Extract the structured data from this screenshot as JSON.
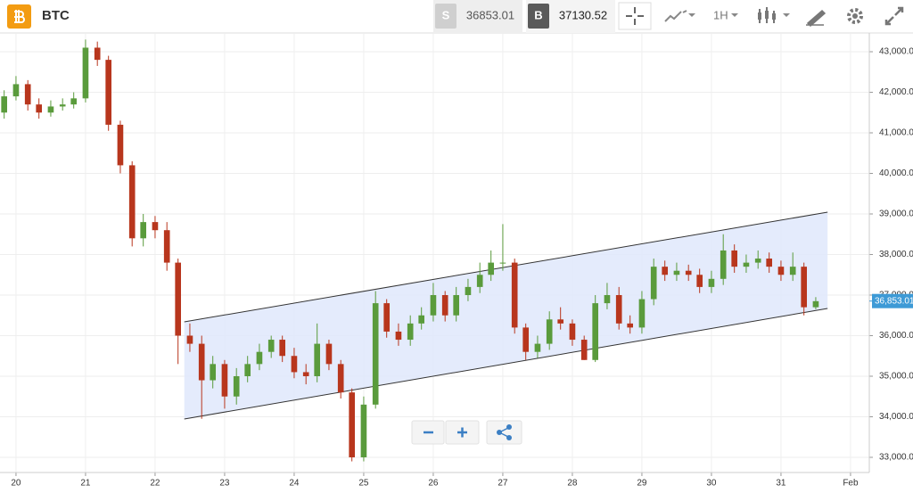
{
  "toolbar": {
    "symbol": "BTC",
    "sell_label": "S",
    "sell_price": "36853.01",
    "buy_label": "B",
    "buy_price": "37130.52",
    "interval": "1H"
  },
  "chart_data": {
    "type": "candlestick",
    "x": [
      19.83,
      20,
      20.17,
      20.33,
      20.5,
      20.67,
      20.83,
      21,
      21.17,
      21.33,
      21.5,
      21.67,
      21.83,
      22,
      22.17,
      22.33,
      22.5,
      22.67,
      22.83,
      23,
      23.17,
      23.33,
      23.5,
      23.67,
      23.83,
      24,
      24.17,
      24.33,
      24.5,
      24.67,
      24.83,
      25,
      25.17,
      25.33,
      25.5,
      25.67,
      25.83,
      26,
      26.17,
      26.33,
      26.5,
      26.67,
      26.83,
      27,
      27.17,
      27.33,
      27.5,
      27.67,
      27.83,
      28,
      28.17,
      28.33,
      28.5,
      28.67,
      28.83,
      29,
      29.17,
      29.33,
      29.5,
      29.67,
      29.83,
      30,
      30.17,
      30.33,
      30.5,
      30.67,
      30.83,
      31,
      31.17,
      31.33,
      31.5
    ],
    "open": [
      41500,
      41900,
      42200,
      41700,
      41500,
      41650,
      41700,
      41850,
      43100,
      42800,
      41200,
      40200,
      38400,
      38800,
      38600,
      37800,
      36000,
      35800,
      34900,
      35300,
      34500,
      35000,
      35300,
      35600,
      35900,
      35500,
      35100,
      35000,
      35800,
      35300,
      34600,
      33000,
      34300,
      36800,
      36100,
      35900,
      36300,
      36500,
      37000,
      36500,
      37000,
      37200,
      37500,
      37800,
      37800,
      36200,
      35600,
      35800,
      36400,
      36300,
      35900,
      35400,
      36800,
      37000,
      36300,
      36200,
      36900,
      37700,
      37500,
      37600,
      37500,
      37200,
      37400,
      38100,
      37700,
      37800,
      37900,
      37700,
      37500,
      37700,
      36700
    ],
    "high": [
      42050,
      42400,
      42300,
      41850,
      41800,
      41850,
      42000,
      43300,
      43250,
      42900,
      41300,
      40300,
      39000,
      38950,
      38800,
      37900,
      36300,
      36000,
      35500,
      35400,
      35200,
      35500,
      35800,
      36000,
      36000,
      35700,
      35300,
      36300,
      35900,
      35400,
      34700,
      34500,
      37100,
      36900,
      36300,
      36500,
      36700,
      37300,
      37100,
      37200,
      37400,
      37800,
      38100,
      38750,
      37900,
      36300,
      36000,
      36600,
      36700,
      36400,
      36000,
      37000,
      37300,
      37200,
      36500,
      37100,
      37900,
      37850,
      37800,
      37750,
      37650,
      37600,
      38500,
      38250,
      38000,
      38100,
      38050,
      37850,
      38050,
      37800,
      36950
    ],
    "low": [
      41350,
      41800,
      41550,
      41350,
      41400,
      41550,
      41600,
      41750,
      42650,
      41050,
      40000,
      38200,
      38200,
      38400,
      37600,
      35300,
      35600,
      33950,
      34700,
      34200,
      34300,
      34850,
      35150,
      35450,
      35350,
      34950,
      34800,
      34850,
      35150,
      34450,
      32900,
      32900,
      34200,
      35950,
      35750,
      35750,
      36150,
      36350,
      36350,
      36350,
      36850,
      37050,
      37350,
      37600,
      36050,
      35400,
      35450,
      35650,
      36150,
      35750,
      35400,
      35350,
      36650,
      36150,
      36050,
      36050,
      36750,
      37350,
      37350,
      37350,
      37050,
      37050,
      37250,
      37550,
      37550,
      37650,
      37550,
      37350,
      37350,
      36500,
      36650
    ],
    "close": [
      41900,
      42200,
      41700,
      41500,
      41650,
      41700,
      41850,
      43100,
      42800,
      41200,
      40200,
      38400,
      38800,
      38600,
      37800,
      36000,
      35800,
      34900,
      35300,
      34500,
      35000,
      35300,
      35600,
      35900,
      35500,
      35100,
      35000,
      35800,
      35300,
      34600,
      33000,
      34300,
      36800,
      36100,
      35900,
      36300,
      36500,
      37000,
      36500,
      37000,
      37200,
      37500,
      37800,
      37800,
      36200,
      35600,
      35800,
      36400,
      36300,
      35900,
      35400,
      36800,
      37000,
      36300,
      36200,
      36900,
      37700,
      37500,
      37600,
      37500,
      37200,
      37400,
      38100,
      37700,
      37800,
      37900,
      37700,
      37500,
      37700,
      36700,
      36850
    ],
    "up_color": "#5a9b3c",
    "down_color": "#b8361d",
    "xlim": [
      19.77,
      32.27
    ],
    "ylim": [
      32626,
      43462
    ],
    "xticks": [
      20,
      21,
      22,
      23,
      24,
      25,
      26,
      27,
      28,
      29,
      30,
      31,
      {
        "value": 32,
        "label": "Feb"
      }
    ],
    "yticks": [
      {
        "value": 33000,
        "label": "33,000.00"
      },
      {
        "value": 34000,
        "label": "34,000.00"
      },
      {
        "value": 35000,
        "label": "35,000.00"
      },
      {
        "value": 36000,
        "label": "36,000.00"
      },
      {
        "value": 37000,
        "label": "37,000.00"
      },
      {
        "value": 38000,
        "label": "38,000.00"
      },
      {
        "value": 39000,
        "label": "39,000.00"
      },
      {
        "value": 40000,
        "label": "40,000.00"
      },
      {
        "value": 41000,
        "label": "41,000.00"
      },
      {
        "value": 42000,
        "label": "42,000.00"
      },
      {
        "value": 43000,
        "label": "43,000.00"
      }
    ],
    "grid": true,
    "channel": {
      "x": [
        22.42,
        31.67
      ],
      "upper": [
        36340,
        39044
      ],
      "lower": [
        33945,
        36670
      ],
      "color": "#dfe7fb"
    },
    "last_price": {
      "value": 36853.01,
      "label": "36,853.01",
      "color": "#3d9ad6"
    }
  }
}
